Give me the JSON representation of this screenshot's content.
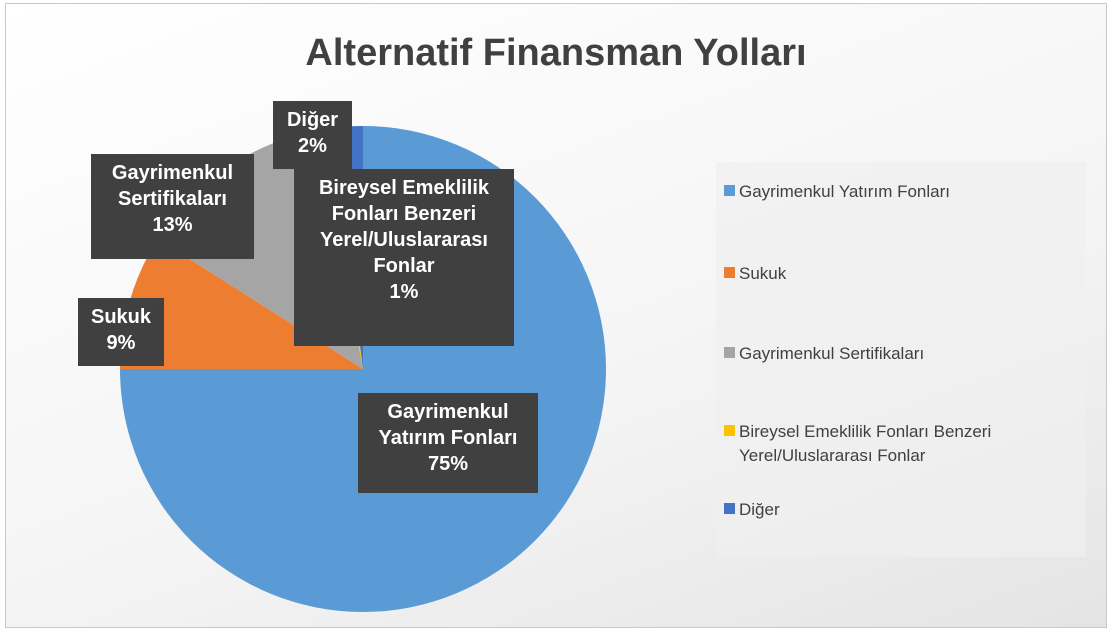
{
  "chart_data": {
    "type": "pie",
    "title": "Alternatif Finansman Yolları",
    "categories": [
      "Gayrimenkul Yatırım Fonları",
      "Sukuk",
      "Gayrimenkul Sertifikaları",
      "Bireysel Emeklilik Fonları Benzeri Yerel/Uluslararası Fonlar",
      "Diğer"
    ],
    "values": [
      75,
      9,
      13,
      1,
      2
    ],
    "value_labels": [
      "75%",
      "9%",
      "13%",
      "1%",
      "2%"
    ],
    "colors": [
      "#5b9bd5",
      "#ed7d31",
      "#a5a5a5",
      "#ffc000",
      "#4472c4"
    ],
    "legend": "right"
  }
}
